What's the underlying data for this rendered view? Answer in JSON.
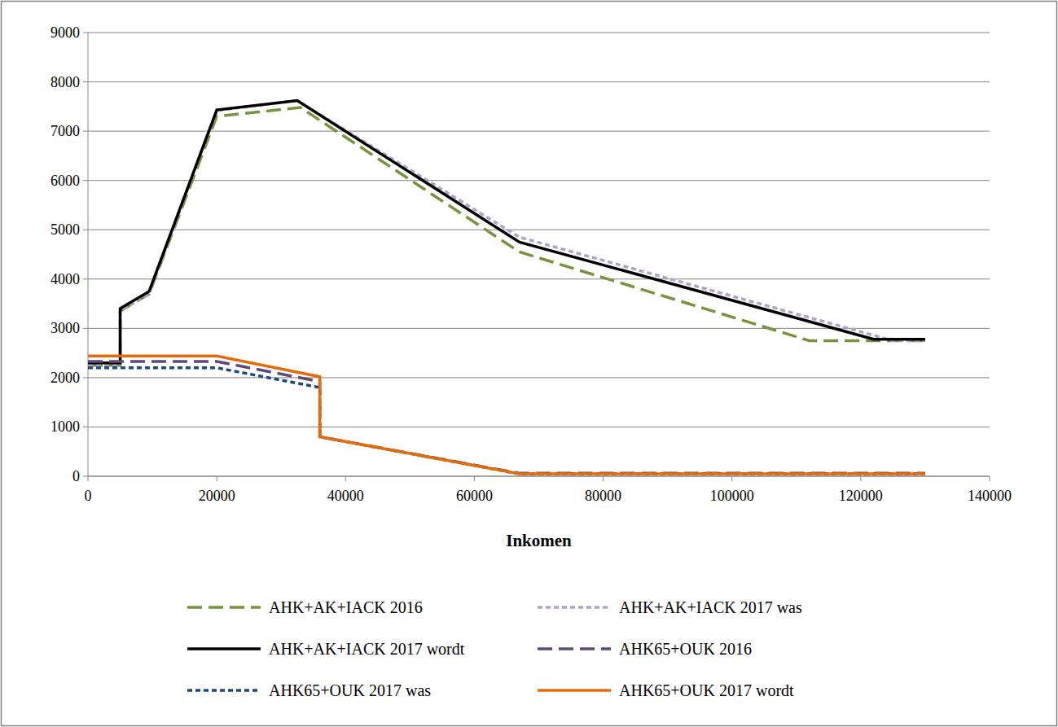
{
  "chart_data": {
    "type": "line",
    "x_label": "Inkomen",
    "xlim": [
      0,
      140000
    ],
    "xticks": [
      0,
      20000,
      40000,
      60000,
      80000,
      100000,
      120000,
      140000
    ],
    "ylim": [
      0,
      9000
    ],
    "yticks": [
      0,
      1000,
      2000,
      3000,
      4000,
      5000,
      6000,
      7000,
      8000,
      9000
    ],
    "grid": true,
    "legend": "bottom",
    "series": [
      {
        "name": "AHK+AK+IACK 2016",
        "color": "#77933c",
        "line_style": "dashed",
        "x": [
          0,
          5000,
          5000,
          9500,
          20000,
          33000,
          67000,
          112000,
          130000
        ],
        "values": [
          2250,
          2250,
          3350,
          3700,
          7300,
          7480,
          4550,
          2750,
          2750
        ]
      },
      {
        "name": "AHK+AK+IACK 2017 was",
        "color": "#b3a2c7",
        "line_style": "dotted",
        "x": [
          0,
          5000,
          5000,
          9500,
          20000,
          32500,
          67000,
          125000,
          130000
        ],
        "values": [
          2250,
          2250,
          3350,
          3700,
          7420,
          7620,
          4850,
          2750,
          2750
        ]
      },
      {
        "name": "AHK+AK+IACK 2017 wordt",
        "color": "#000000",
        "line_style": "solid",
        "x": [
          0,
          5000,
          5000,
          9500,
          20000,
          32500,
          67000,
          122000,
          130000
        ],
        "values": [
          2300,
          2300,
          3400,
          3750,
          7430,
          7620,
          4750,
          2780,
          2780
        ]
      },
      {
        "name": "AHK65+OUK 2016",
        "color": "#604a7b",
        "line_style": "dashed",
        "x": [
          0,
          20000,
          36000,
          36000,
          67000,
          130000
        ],
        "values": [
          2330,
          2330,
          1920,
          800,
          60,
          60
        ]
      },
      {
        "name": "AHK65+OUK 2017 was",
        "color": "#1f497d",
        "line_style": "dotted",
        "x": [
          0,
          20000,
          36000,
          36000,
          67000,
          130000
        ],
        "values": [
          2200,
          2200,
          1800,
          800,
          50,
          50
        ]
      },
      {
        "name": "AHK65+OUK 2017 wordt",
        "color": "#e46c0a",
        "line_style": "solid",
        "x": [
          0,
          20000,
          36000,
          36000,
          67000,
          130000
        ],
        "values": [
          2440,
          2440,
          2020,
          800,
          50,
          50
        ]
      }
    ]
  }
}
